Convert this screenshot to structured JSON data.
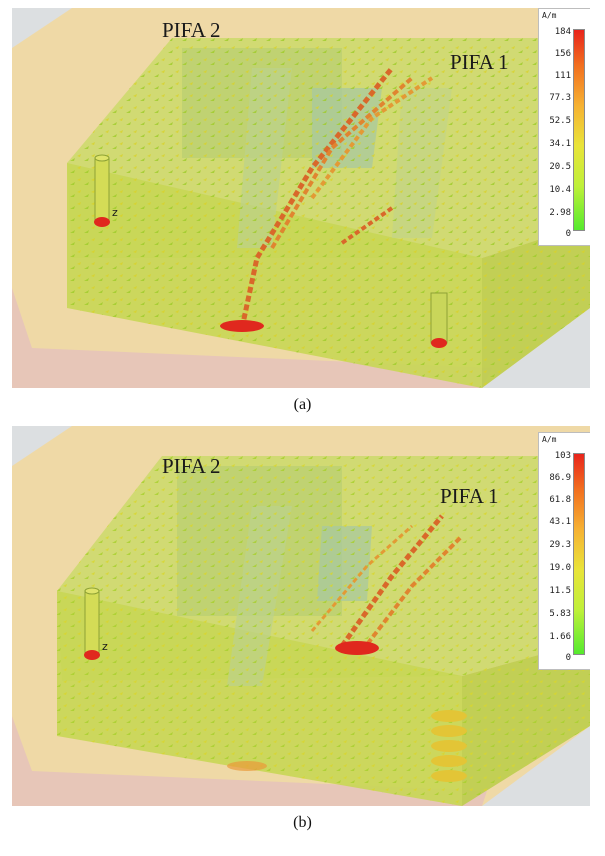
{
  "figure": {
    "panels": [
      {
        "caption": "(a)",
        "labels": {
          "pifa2": "PIFA 2",
          "pifa1": "PIFA 1",
          "axis": "z"
        },
        "colorbar": {
          "unit": "A/m",
          "ticks": [
            "184",
            "156",
            "111",
            "77.3",
            "52.5",
            "34.1",
            "20.5",
            "10.4",
            "2.98",
            "0"
          ]
        }
      },
      {
        "caption": "(b)",
        "labels": {
          "pifa2": "PIFA 2",
          "pifa1": "PIFA 1",
          "axis": "z"
        },
        "colorbar": {
          "unit": "A/m",
          "ticks": [
            "103",
            "86.9",
            "61.8",
            "43.1",
            "29.3",
            "19.0",
            "11.5",
            "5.83",
            "1.66",
            "0"
          ]
        }
      }
    ]
  }
}
